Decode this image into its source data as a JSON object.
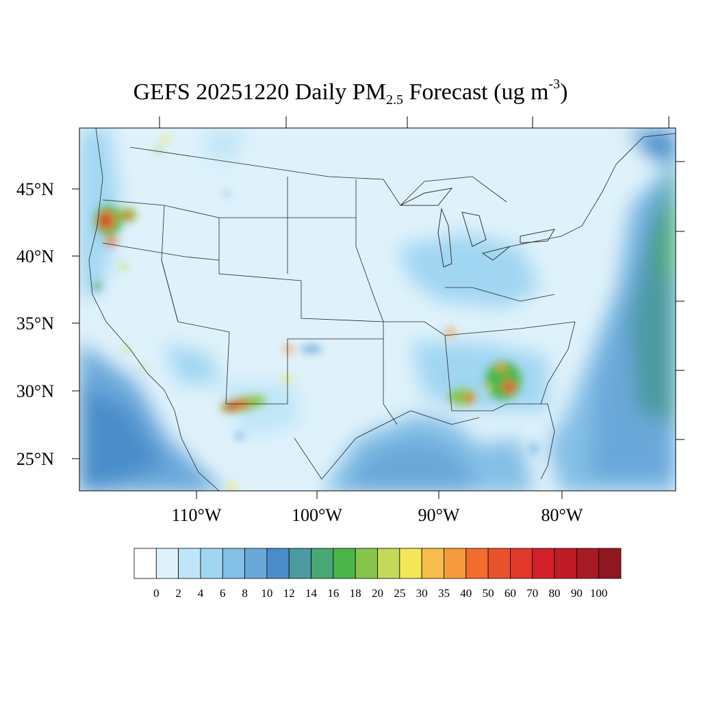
{
  "title": {
    "prefix": "GEFS 20251220 Daily PM",
    "subscript": "2.5",
    "middle": " Forecast (ug m",
    "superscript": "-3",
    "suffix": ")"
  },
  "map": {
    "lat_labels": [
      "45°N",
      "40°N",
      "35°N",
      "30°N",
      "25°N"
    ],
    "lon_labels": [
      "110°W",
      "100°W",
      "90°W",
      "80°W"
    ],
    "background_color": "#dff2fb",
    "ocean_color": "#7fb9e0"
  },
  "colorbar": {
    "labels": [
      "0",
      "2",
      "4",
      "6",
      "8",
      "10",
      "12",
      "14",
      "16",
      "18",
      "20",
      "25",
      "30",
      "35",
      "40",
      "50",
      "60",
      "70",
      "80",
      "90",
      "100"
    ],
    "colors": [
      "#ffffff",
      "#dff2fb",
      "#bfe6f8",
      "#a0d6f2",
      "#84bfe6",
      "#6aa8da",
      "#4a8dca",
      "#4b9aa0",
      "#48a775",
      "#4bb54a",
      "#87c44b",
      "#c4d95a",
      "#f5e658",
      "#f7bd4c",
      "#f59a3e",
      "#f26b2f",
      "#e8522d",
      "#e0382b",
      "#d21f2a",
      "#bf1c28",
      "#a81a24",
      "#8f1820"
    ]
  }
}
